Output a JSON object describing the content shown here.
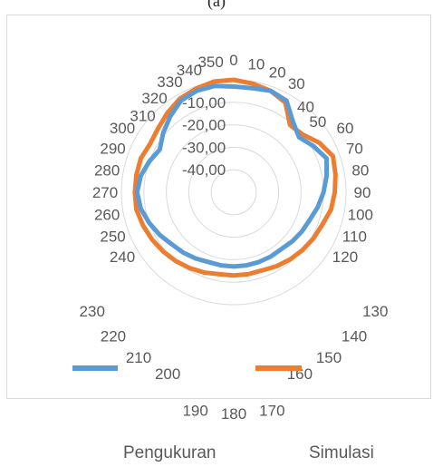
{
  "title": "(a)",
  "chart_data": {
    "type": "radar",
    "title": "(a)",
    "radial_axis": {
      "tick_labels": [
        "-10,00",
        "-20,00",
        "-30,00",
        "-40,00"
      ],
      "ticks": [
        -10,
        -20,
        -30,
        -40
      ],
      "min": -50,
      "max": 0
    },
    "categories": [
      "0",
      "10",
      "20",
      "30",
      "40",
      "50",
      "60",
      "70",
      "80",
      "90",
      "100",
      "110",
      "120",
      "130",
      "140",
      "150",
      "160",
      "170",
      "180",
      "190",
      "200",
      "210",
      "220",
      "230",
      "240",
      "250",
      "260",
      "270",
      "280",
      "290",
      "300",
      "310",
      "320",
      "330",
      "340",
      "350"
    ],
    "series": [
      {
        "name": "Pengukuran",
        "color": "#5b9bd5",
        "values": [
          -3,
          -3,
          -2,
          -3,
          -9,
          -12,
          -9,
          -6,
          -8,
          -10,
          -12,
          -14,
          -15,
          -16,
          -17,
          -17,
          -17,
          -17,
          -17,
          -17,
          -17,
          -16,
          -15,
          -14,
          -12,
          -10,
          -8,
          -7,
          -8,
          -10,
          -12,
          -9,
          -6,
          -3,
          -2,
          -2
        ]
      },
      {
        "name": "Simulasi",
        "color": "#ed7d31",
        "values": [
          0,
          -1,
          -2,
          -4,
          -11,
          -10,
          -6,
          -3,
          -4,
          -5,
          -6,
          -8,
          -9,
          -10,
          -11,
          -12,
          -13,
          -13,
          -13,
          -13,
          -12,
          -11,
          -10,
          -9,
          -8,
          -7,
          -6,
          -6,
          -6,
          -6,
          -7,
          -6,
          -4,
          -2,
          -1,
          0
        ]
      }
    ],
    "legend": {
      "position": "bottom",
      "entries": [
        "Pengukuran",
        "Simulasi"
      ]
    }
  }
}
